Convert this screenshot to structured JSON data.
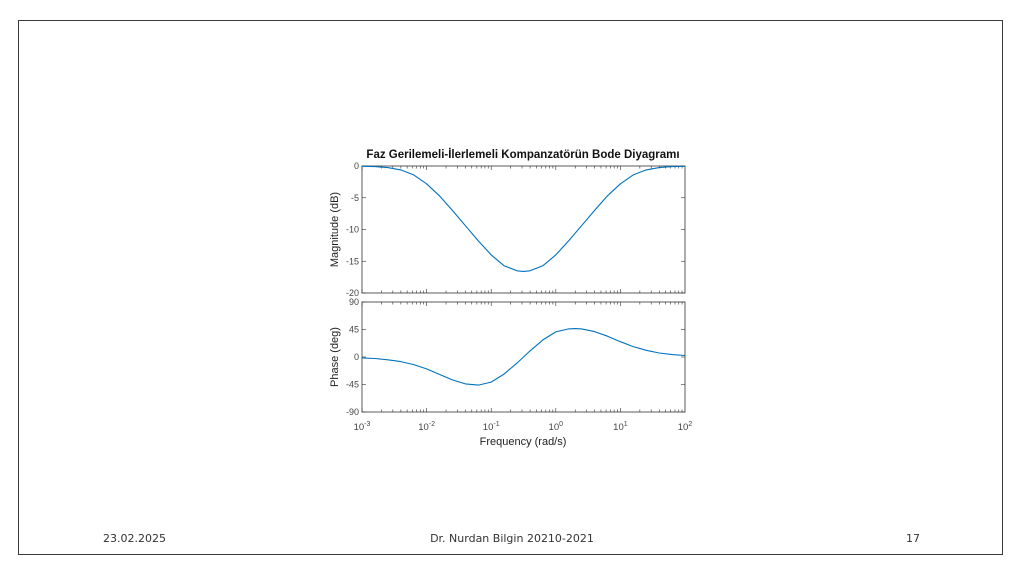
{
  "slide": {
    "date": "23.02.2025",
    "author": "Dr. Nurdan Bilgin 20210-2021",
    "page_number": "17"
  },
  "chart_data": {
    "type": "line",
    "title": "Faz Gerilemeli-İlerlemeli Kompanzatörün Bode Diyagramı",
    "xlabel": "Frequency  (rad/s)",
    "x_scale": "log",
    "xlim": [
      0.001,
      100
    ],
    "x_tick_labels": [
      {
        "base": "10",
        "exp": "-3"
      },
      {
        "base": "10",
        "exp": "-2"
      },
      {
        "base": "10",
        "exp": "-1"
      },
      {
        "base": "10",
        "exp": "0"
      },
      {
        "base": "10",
        "exp": "1"
      },
      {
        "base": "10",
        "exp": "2"
      }
    ],
    "line_color": "#0072BD",
    "grid": false,
    "subplots": [
      {
        "name": "magnitude",
        "ylabel": "Magnitude (dB)",
        "ylim": [
          -20,
          0
        ],
        "yticks": [
          "0",
          "-5",
          "-10",
          "-15",
          "-20"
        ],
        "x": [
          0.001,
          0.00158,
          0.00251,
          0.00398,
          0.00631,
          0.01,
          0.0158,
          0.0251,
          0.0398,
          0.0631,
          0.1,
          0.158,
          0.251,
          0.316,
          0.398,
          0.631,
          1.0,
          1.58,
          2.51,
          3.98,
          6.31,
          10,
          15.8,
          25.1,
          39.8,
          63.1,
          100
        ],
        "values": [
          -0.04,
          -0.1,
          -0.25,
          -0.62,
          -1.4,
          -2.8,
          -4.7,
          -7.0,
          -9.4,
          -11.8,
          -14.0,
          -15.7,
          -16.5,
          -16.6,
          -16.5,
          -15.7,
          -14.0,
          -11.8,
          -9.4,
          -7.0,
          -4.7,
          -2.8,
          -1.4,
          -0.62,
          -0.25,
          -0.1,
          -0.04
        ]
      },
      {
        "name": "phase",
        "ylabel": "Phase (deg)",
        "ylim": [
          -90,
          90
        ],
        "yticks": [
          "90",
          "45",
          "0",
          "-45",
          "-90"
        ],
        "x": [
          0.001,
          0.00158,
          0.00251,
          0.00398,
          0.00631,
          0.01,
          0.0158,
          0.0251,
          0.0398,
          0.0631,
          0.1,
          0.158,
          0.251,
          0.398,
          0.631,
          1.0,
          1.58,
          2.0,
          2.51,
          3.98,
          6.31,
          10,
          15.8,
          25.1,
          39.8,
          63.1,
          100
        ],
        "values": [
          -1.5,
          -2.5,
          -4.5,
          -7.5,
          -12.5,
          -19.5,
          -28.5,
          -37.5,
          -44.0,
          -46.0,
          -41.0,
          -28.0,
          -10.0,
          10.0,
          28.0,
          41.0,
          46.0,
          46.5,
          46.0,
          41.5,
          34.0,
          25.0,
          17.0,
          11.0,
          6.5,
          4.0,
          2.5
        ]
      }
    ]
  }
}
